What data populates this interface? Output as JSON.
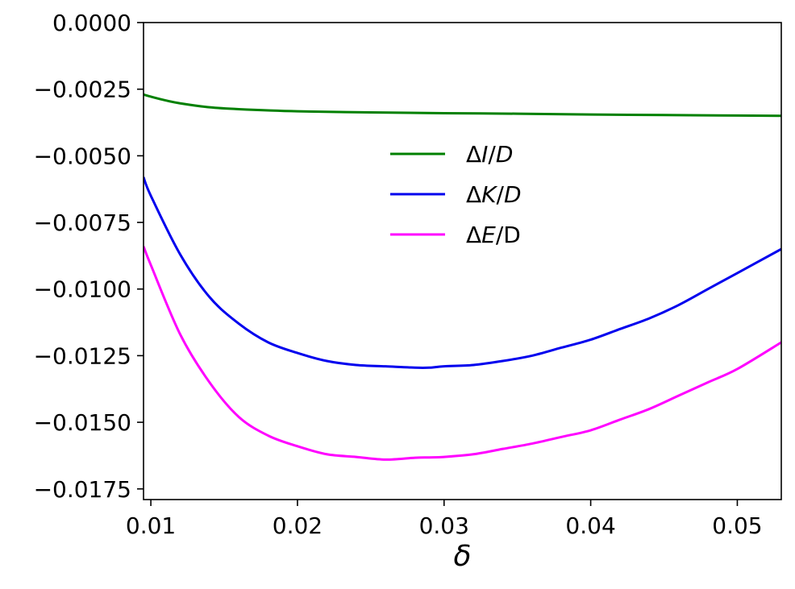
{
  "chart_data": {
    "type": "line",
    "xlabel": "δ",
    "ylabel": "",
    "xlim": [
      0.0095,
      0.053
    ],
    "ylim": [
      -0.0179,
      0.0
    ],
    "xticks": [
      0.01,
      0.02,
      0.03,
      0.04,
      0.05
    ],
    "xtick_labels": [
      "0.01",
      "0.02",
      "0.03",
      "0.04",
      "0.05"
    ],
    "yticks": [
      0.0,
      -0.0025,
      -0.005,
      -0.0075,
      -0.01,
      -0.0125,
      -0.015,
      -0.0175
    ],
    "ytick_labels": [
      "0.0000",
      "−0.0025",
      "−0.0050",
      "−0.0075",
      "−0.0100",
      "−0.0125",
      "−0.0150",
      "−0.0175"
    ],
    "grid": false,
    "legend_position": "upper-center",
    "series": [
      {
        "name": "ΔI/D",
        "legend": {
          "pre": "Δ",
          "var": "I",
          "post": "/",
          "var2": "D"
        },
        "color": "#008000",
        "x": [
          0.0095,
          0.01,
          0.011,
          0.012,
          0.014,
          0.016,
          0.02,
          0.025,
          0.03,
          0.035,
          0.04,
          0.045,
          0.05,
          0.053
        ],
        "y": [
          -0.0027,
          -0.00278,
          -0.00292,
          -0.00303,
          -0.00318,
          -0.00325,
          -0.00333,
          -0.00337,
          -0.0034,
          -0.00342,
          -0.00345,
          -0.00347,
          -0.00349,
          -0.0035
        ]
      },
      {
        "name": "ΔK/D",
        "legend": {
          "pre": "Δ",
          "var": "K",
          "post": "/",
          "var2": "D"
        },
        "color": "#0000ee",
        "x": [
          0.0095,
          0.01,
          0.012,
          0.014,
          0.016,
          0.018,
          0.02,
          0.022,
          0.024,
          0.026,
          0.028,
          0.029,
          0.03,
          0.032,
          0.034,
          0.036,
          0.038,
          0.04,
          0.042,
          0.044,
          0.046,
          0.048,
          0.05,
          0.053
        ],
        "y": [
          -0.0058,
          -0.0065,
          -0.0087,
          -0.0103,
          -0.0113,
          -0.012,
          -0.0124,
          -0.0127,
          -0.01285,
          -0.0129,
          -0.01295,
          -0.01295,
          -0.0129,
          -0.01285,
          -0.0127,
          -0.0125,
          -0.0122,
          -0.0119,
          -0.0115,
          -0.0111,
          -0.0106,
          -0.01,
          -0.0094,
          -0.0085
        ]
      },
      {
        "name": "ΔE/D",
        "legend": {
          "pre": "Δ",
          "var": "E",
          "post": "/",
          "var2": "",
          "post2": "D"
        },
        "color": "#ff00ff",
        "x": [
          0.0095,
          0.01,
          0.012,
          0.014,
          0.016,
          0.018,
          0.02,
          0.022,
          0.024,
          0.026,
          0.028,
          0.029,
          0.03,
          0.032,
          0.034,
          0.036,
          0.038,
          0.04,
          0.042,
          0.044,
          0.046,
          0.048,
          0.05,
          0.053
        ],
        "y": [
          -0.0084,
          -0.0091,
          -0.0117,
          -0.0135,
          -0.0148,
          -0.0155,
          -0.0159,
          -0.0162,
          -0.0163,
          -0.0164,
          -0.01633,
          -0.01632,
          -0.0163,
          -0.0162,
          -0.016,
          -0.0158,
          -0.01555,
          -0.0153,
          -0.0149,
          -0.0145,
          -0.014,
          -0.0135,
          -0.013,
          -0.012
        ]
      }
    ]
  }
}
